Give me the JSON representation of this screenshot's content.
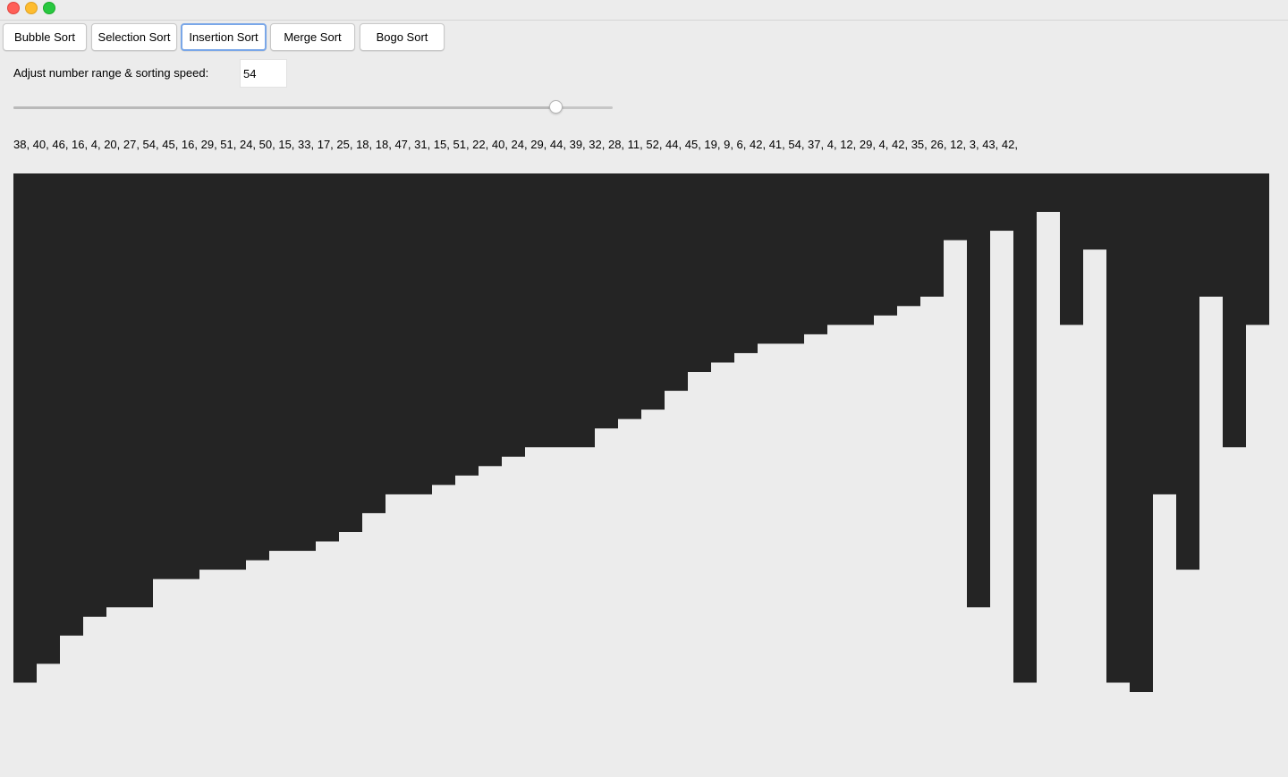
{
  "toolbar": {
    "buttons": [
      {
        "label": "Bubble Sort"
      },
      {
        "label": "Selection Sort"
      },
      {
        "label": "Insertion Sort"
      },
      {
        "label": "Merge Sort"
      },
      {
        "label": "Bogo Sort"
      }
    ]
  },
  "controls": {
    "range_label": "Adjust number range & sorting speed:",
    "range_value": "54",
    "slider_fraction": 0.905
  },
  "numbers_text": "38, 40, 46, 16, 4, 20, 27, 54, 45, 16, 29, 51, 24, 50, 15, 33, 17, 25, 18, 18, 47, 31, 15, 51, 22, 40, 24, 29, 44, 39, 32, 28, 11, 52, 44, 45, 19, 9, 6, 42, 41, 54, 37, 4, 12, 29, 4, 42, 35, 26, 12, 3, 43, 42,",
  "chart_data": {
    "type": "bar",
    "values": [
      4,
      6,
      9,
      11,
      12,
      12,
      15,
      15,
      16,
      16,
      17,
      18,
      18,
      19,
      20,
      22,
      24,
      24,
      25,
      26,
      27,
      28,
      29,
      29,
      29,
      31,
      32,
      33,
      35,
      37,
      38,
      39,
      40,
      40,
      41,
      42,
      42,
      43,
      44,
      45,
      51,
      12,
      52,
      4,
      54,
      42,
      50,
      4,
      3,
      24,
      16,
      45,
      29,
      42
    ],
    "ylim": [
      0,
      54
    ],
    "colors": {
      "bar": "#242424"
    }
  }
}
